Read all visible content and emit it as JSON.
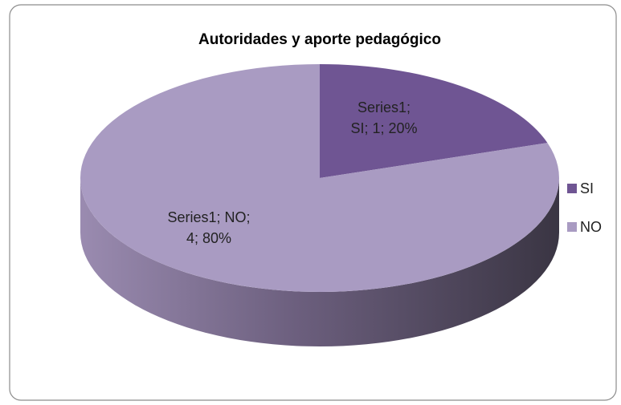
{
  "chart_data": {
    "type": "pie",
    "title": "Autoridades y aporte pedagógico",
    "series_name": "Series1",
    "categories": [
      "SI",
      "NO"
    ],
    "values": [
      1,
      4
    ],
    "value_labels": [
      "Series1; SI; 1; 20%",
      "Series1; NO; 4; 80%"
    ],
    "colors": [
      "#6f5593",
      "#a99bc2"
    ],
    "legend": "right"
  }
}
